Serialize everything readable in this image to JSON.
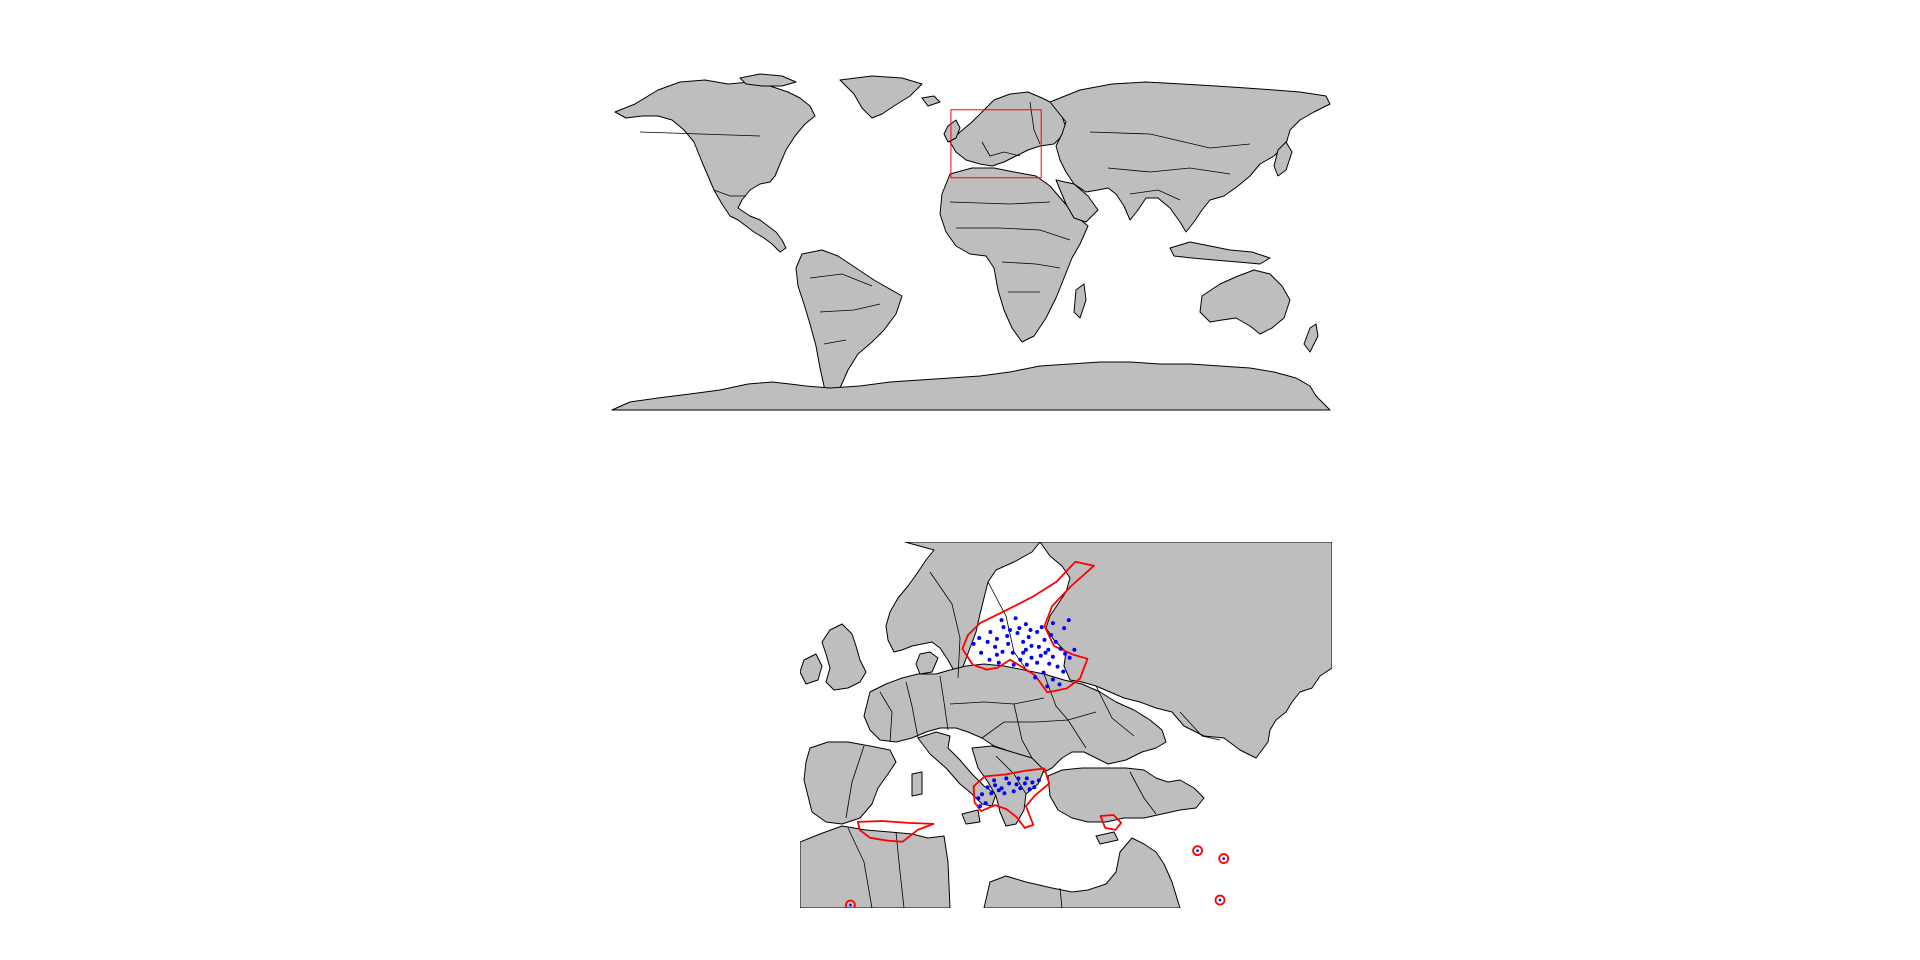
{
  "colors": {
    "land": "#bebebe",
    "border": "#000000",
    "region_box": "#ff0000",
    "range": "#ff0000",
    "occurrence": "#0000ff",
    "background": "#ffffff"
  },
  "world_map": {
    "extent": {
      "lon": [
        -180,
        180
      ],
      "lat": [
        -90,
        90
      ]
    },
    "region_of_interest": {
      "lon": [
        -10,
        35
      ],
      "lat": [
        34,
        70
      ]
    }
  },
  "europe_map": {
    "extent": {
      "lon": [
        -12,
        45
      ],
      "lat": [
        34,
        71
      ]
    },
    "range_polygons": [
      {
        "name": "scandinavia",
        "points": [
          [
            7.3,
            62.8
          ],
          [
            10.5,
            64.3
          ],
          [
            13,
            65.5
          ],
          [
            15.5,
            67
          ],
          [
            17.5,
            69
          ],
          [
            19.5,
            68.6
          ],
          [
            17,
            66.5
          ],
          [
            15,
            64.5
          ],
          [
            14.2,
            62.5
          ],
          [
            15.2,
            60.5
          ],
          [
            17.3,
            59.6
          ],
          [
            18.8,
            59.2
          ],
          [
            18,
            57.2
          ],
          [
            16.6,
            56.2
          ],
          [
            14.5,
            55.8
          ],
          [
            13.2,
            57.5
          ],
          [
            11.9,
            58.3
          ],
          [
            10.5,
            59.1
          ],
          [
            9.2,
            58.3
          ],
          [
            8,
            58.1
          ],
          [
            6.5,
            58.6
          ],
          [
            5.4,
            60.2
          ],
          [
            6,
            61.6
          ]
        ]
      },
      {
        "name": "alps",
        "points": [
          [
            6.6,
            46.3
          ],
          [
            7.8,
            47.3
          ],
          [
            10,
            47.5
          ],
          [
            12.3,
            47.9
          ],
          [
            14.2,
            48.1
          ],
          [
            14.7,
            46.6
          ],
          [
            13.2,
            45.4
          ],
          [
            12.2,
            44.3
          ],
          [
            13,
            42.4
          ],
          [
            12.1,
            42.1
          ],
          [
            11.2,
            43.2
          ],
          [
            10.1,
            44
          ],
          [
            8.9,
            44.4
          ],
          [
            7.4,
            43.8
          ],
          [
            6.7,
            44.7
          ]
        ]
      },
      {
        "name": "iberia",
        "points": [
          [
            -5.8,
            42.7
          ],
          [
            -3.2,
            42.8
          ],
          [
            -0.4,
            42.6
          ],
          [
            2.3,
            42.5
          ],
          [
            0.6,
            41.9
          ],
          [
            -1,
            40.7
          ],
          [
            -2.6,
            40.8
          ],
          [
            -4.5,
            41.1
          ],
          [
            -5.6,
            41.9
          ]
        ]
      },
      {
        "name": "balkans",
        "points": [
          [
            20.2,
            43.3
          ],
          [
            21.6,
            43.4
          ],
          [
            22.4,
            42.6
          ],
          [
            21.8,
            41.9
          ],
          [
            20.7,
            42.1
          ]
        ]
      },
      {
        "name": "turkey-west",
        "ellipse": [
          30.6,
          39.8
        ]
      },
      {
        "name": "turkey-east",
        "ellipse": [
          33.4,
          39.0
        ]
      },
      {
        "name": "cyprus",
        "ellipse": [
          33.0,
          34.8
        ]
      },
      {
        "name": "morocco",
        "ellipse": [
          -6.6,
          34.3
        ]
      }
    ],
    "occurrence_points": [
      [
        9.8,
        62.4
      ],
      [
        10.5,
        62.1
      ],
      [
        11.3,
        61.8
      ],
      [
        12.2,
        62.7
      ],
      [
        13.4,
        61.9
      ],
      [
        12.5,
        61.4
      ],
      [
        11.9,
        60.9
      ],
      [
        10.3,
        60.7
      ],
      [
        9.1,
        61.2
      ],
      [
        8.4,
        61.9
      ],
      [
        8.9,
        60.4
      ],
      [
        9.7,
        59.9
      ],
      [
        10.8,
        59.8
      ],
      [
        11.9,
        59.8
      ],
      [
        12.8,
        60.5
      ],
      [
        13.6,
        60.4
      ],
      [
        14.2,
        61.1
      ],
      [
        14.9,
        61.6
      ],
      [
        15.4,
        60.9
      ],
      [
        14.6,
        60.1
      ],
      [
        15.9,
        60.2
      ],
      [
        16.4,
        59.7
      ],
      [
        15.1,
        59.4
      ],
      [
        13.8,
        59.5
      ],
      [
        12.8,
        59.3
      ],
      [
        11.6,
        59.1
      ],
      [
        10.9,
        58.6
      ],
      [
        12.3,
        58.6
      ],
      [
        13.4,
        58.8
      ],
      [
        14.7,
        58.7
      ],
      [
        15.6,
        58.4
      ],
      [
        16.2,
        57.9
      ],
      [
        14.1,
        57.8
      ],
      [
        13.2,
        57.3
      ],
      [
        15.1,
        57.1
      ],
      [
        14.5,
        56.4
      ],
      [
        15.8,
        56.6
      ],
      [
        16.3,
        62.3
      ],
      [
        16.8,
        63.1
      ],
      [
        15.1,
        62.8
      ],
      [
        11.1,
        63.3
      ],
      [
        9.6,
        63.1
      ],
      [
        8.1,
        60.9
      ],
      [
        7.2,
        61.3
      ],
      [
        6.6,
        60.7
      ],
      [
        7.4,
        59.8
      ],
      [
        8.3,
        59.1
      ],
      [
        9.3,
        58.8
      ],
      [
        13.9,
        62.4
      ],
      [
        12.7,
        62.1
      ],
      [
        11.5,
        62.3
      ],
      [
        10.2,
        61.5
      ],
      [
        9.1,
        59.6
      ],
      [
        12.2,
        60.1
      ],
      [
        14.3,
        59.8
      ],
      [
        16.9,
        59.3
      ],
      [
        17.4,
        60.1
      ],
      [
        8.1,
        46.2
      ],
      [
        8.9,
        46.4
      ],
      [
        9.6,
        46.1
      ],
      [
        10.4,
        46.6
      ],
      [
        11.2,
        46.5
      ],
      [
        12.1,
        46.6
      ],
      [
        12.9,
        46.7
      ],
      [
        13.6,
        46.9
      ],
      [
        11.6,
        46.1
      ],
      [
        10.9,
        45.8
      ],
      [
        9.9,
        45.6
      ],
      [
        9.3,
        45.9
      ],
      [
        8.5,
        45.6
      ],
      [
        7.5,
        45.5
      ],
      [
        7.1,
        45.1
      ],
      [
        7.3,
        44.3
      ],
      [
        7.9,
        44.6
      ],
      [
        12.3,
        47.1
      ],
      [
        13.1,
        46.2
      ],
      [
        11.4,
        47.1
      ],
      [
        10.1,
        47.1
      ],
      [
        8.8,
        46.9
      ],
      [
        12.6,
        46.0
      ]
    ]
  }
}
